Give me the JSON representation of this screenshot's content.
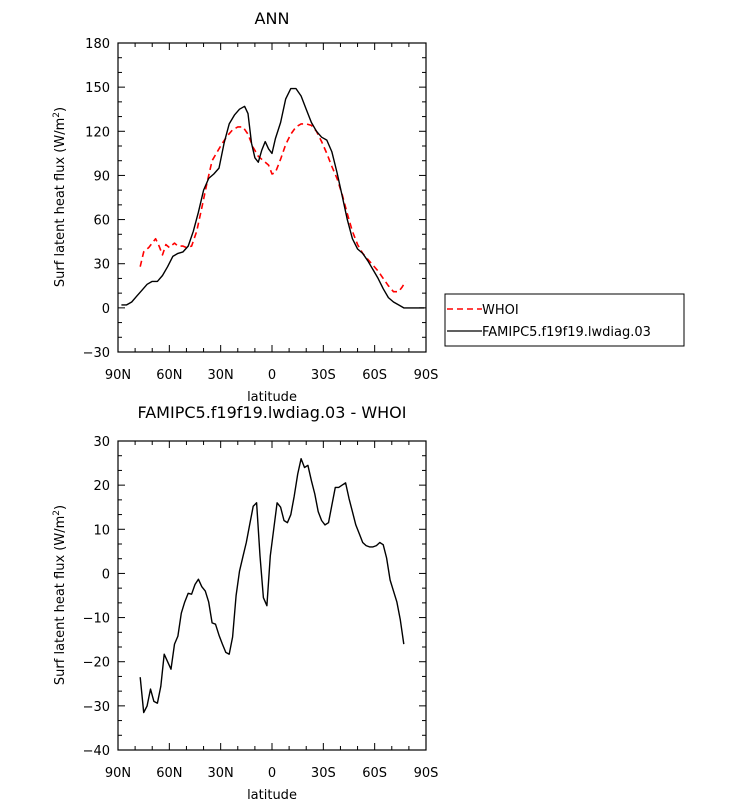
{
  "figure": {
    "top_title": "ANN",
    "bottom_title": "FAMIPC5.f19f19.lwdiag.03 - WHOI"
  },
  "chart_data": [
    {
      "type": "line",
      "title": "ANN",
      "xlabel": "latitude",
      "ylabel": "Surf latent heat flux (W/m²)",
      "ylabel_base": "Surf latent heat flux (W/m",
      "ylabel_sup": "2",
      "ylabel_tail": ")",
      "xlim": [
        90,
        -90
      ],
      "ylim": [
        -30,
        180
      ],
      "xticks": [
        {
          "value": 90,
          "label": "90N"
        },
        {
          "value": 60,
          "label": "60N"
        },
        {
          "value": 30,
          "label": "30N"
        },
        {
          "value": 0,
          "label": "0"
        },
        {
          "value": -30,
          "label": "30S"
        },
        {
          "value": -60,
          "label": "60S"
        },
        {
          "value": -90,
          "label": "90S"
        }
      ],
      "yticks": [
        {
          "value": 180,
          "label": "180"
        },
        {
          "value": 150,
          "label": "150"
        },
        {
          "value": 120,
          "label": "120"
        },
        {
          "value": 90,
          "label": "90"
        },
        {
          "value": 60,
          "label": "60"
        },
        {
          "value": 30,
          "label": "30"
        },
        {
          "value": 0,
          "label": "0"
        },
        {
          "value": -30,
          "label": "−30"
        }
      ],
      "legend_position": "right",
      "series": [
        {
          "name": "WHOI",
          "color": "#ff0000",
          "dash": "dashed",
          "x": [
            77,
            75,
            72,
            70,
            68,
            66,
            64,
            62,
            60,
            57,
            55,
            52,
            50,
            47,
            44,
            41,
            38,
            35,
            32,
            29,
            26,
            23,
            20,
            17,
            14,
            11,
            8,
            5,
            2,
            0,
            -2,
            -5,
            -8,
            -11,
            -14,
            -17,
            -20,
            -23,
            -26,
            -29,
            -32,
            -35,
            -38,
            -41,
            -44,
            -47,
            -50,
            -53,
            -56,
            -59,
            -62,
            -65,
            -68,
            -71,
            -74,
            -76,
            -78
          ],
          "y": [
            28,
            38,
            41,
            44,
            47,
            42,
            36,
            43,
            41,
            44,
            42,
            42,
            41,
            42,
            52,
            68,
            85,
            100,
            106,
            112,
            117,
            121,
            123,
            123,
            118,
            109,
            103,
            100,
            97,
            91,
            92,
            101,
            111,
            118,
            123,
            125,
            125,
            124,
            120,
            113,
            105,
            96,
            88,
            77,
            64,
            52,
            43,
            37,
            33,
            29,
            25,
            20,
            15,
            11,
            11,
            14,
            18
          ]
        },
        {
          "name": "FAMIPC5.f19f19.lwdiag.03",
          "color": "#000000",
          "dash": "solid",
          "x": [
            88,
            85,
            82,
            79,
            76,
            73,
            70,
            67,
            64,
            61,
            58,
            55,
            52,
            49,
            46,
            43,
            40,
            37,
            34,
            31,
            28,
            25,
            22,
            19,
            16,
            14,
            12,
            10,
            8,
            6,
            4,
            2,
            0,
            -2,
            -5,
            -8,
            -11,
            -14,
            -17,
            -20,
            -23,
            -26,
            -29,
            -32,
            -35,
            -38,
            -41,
            -44,
            -47,
            -50,
            -53,
            -56,
            -59,
            -62,
            -65,
            -68,
            -71,
            -74,
            -77,
            -80,
            -83,
            -86,
            -89
          ],
          "y": [
            2,
            2,
            4,
            8,
            12,
            16,
            18,
            18,
            22,
            28,
            35,
            37,
            38,
            42,
            52,
            65,
            80,
            88,
            91,
            95,
            112,
            125,
            131,
            135,
            137,
            132,
            112,
            102,
            99,
            107,
            113,
            108,
            105,
            115,
            126,
            142,
            149,
            149,
            144,
            135,
            126,
            120,
            116,
            114,
            106,
            92,
            76,
            60,
            47,
            40,
            37,
            32,
            26,
            20,
            13,
            7,
            4,
            2,
            0,
            0,
            0,
            0,
            0
          ]
        }
      ]
    },
    {
      "type": "line",
      "title": "FAMIPC5.f19f19.lwdiag.03 - WHOI",
      "xlabel": "latitude",
      "ylabel": "Surf latent heat flux (W/m²)",
      "ylabel_base": "Surf latent heat flux (W/m",
      "ylabel_sup": "2",
      "ylabel_tail": ")",
      "xlim": [
        90,
        -90
      ],
      "ylim": [
        -40,
        30
      ],
      "xticks": [
        {
          "value": 90,
          "label": "90N"
        },
        {
          "value": 60,
          "label": "60N"
        },
        {
          "value": 30,
          "label": "30N"
        },
        {
          "value": 0,
          "label": "0"
        },
        {
          "value": -30,
          "label": "30S"
        },
        {
          "value": -60,
          "label": "60S"
        },
        {
          "value": -90,
          "label": "90S"
        }
      ],
      "yticks": [
        {
          "value": 30,
          "label": "30"
        },
        {
          "value": 20,
          "label": "20"
        },
        {
          "value": 10,
          "label": "10"
        },
        {
          "value": 0,
          "label": "0"
        },
        {
          "value": -10,
          "label": "−10"
        },
        {
          "value": -20,
          "label": "−20"
        },
        {
          "value": -30,
          "label": "−30"
        },
        {
          "value": -40,
          "label": "−40"
        }
      ],
      "series": [
        {
          "name": "",
          "color": "#000000",
          "dash": "solid",
          "x": [
            77,
            75,
            73,
            71,
            69,
            67,
            65,
            63,
            61,
            59,
            57,
            55,
            53,
            51,
            49,
            47,
            45,
            43,
            41,
            39,
            37,
            35,
            33,
            31,
            29,
            27,
            25,
            23,
            21,
            19,
            17,
            15,
            13,
            11,
            9,
            7,
            5,
            3,
            1,
            -1,
            -3,
            -5,
            -7,
            -9,
            -11,
            -13,
            -15,
            -17,
            -19,
            -21,
            -23,
            -25,
            -27,
            -29,
            -31,
            -33,
            -35,
            -37,
            -39,
            -41,
            -43,
            -45,
            -47,
            -49,
            -51,
            -53,
            -55,
            -57,
            -59,
            -61,
            -63,
            -65,
            -67,
            -69,
            -71,
            -73,
            -75,
            -77
          ],
          "y": [
            -23.5,
            -31.5,
            -30,
            -26.2,
            -29,
            -29.4,
            -25.6,
            -18.3,
            -20,
            -21.7,
            -16,
            -14.2,
            -9,
            -6.5,
            -4.5,
            -4.7,
            -2.5,
            -1.3,
            -3,
            -4,
            -6.5,
            -11.2,
            -11.5,
            -14,
            -16,
            -17.9,
            -18.3,
            -14.4,
            -5,
            0.5,
            3.8,
            7,
            11.2,
            15.2,
            16,
            4,
            -5.5,
            -7.3,
            4,
            10,
            16,
            15,
            12,
            11.5,
            13.3,
            17.5,
            22.5,
            26,
            24,
            24.5,
            21,
            18,
            14,
            12,
            11,
            11.5,
            15.5,
            19.5,
            19.5,
            20,
            20.5,
            17,
            14,
            11,
            9,
            7,
            6.3,
            6,
            6,
            6.3,
            7,
            6.5,
            3.5,
            -1.5,
            -4,
            -6.5,
            -10.5,
            -16
          ]
        }
      ]
    }
  ],
  "legend": {
    "items": [
      {
        "label": "WHOI",
        "color": "#ff0000",
        "dash": "dashed"
      },
      {
        "label": "FAMIPC5.f19f19.lwdiag.03",
        "color": "#000000",
        "dash": "solid"
      }
    ]
  }
}
